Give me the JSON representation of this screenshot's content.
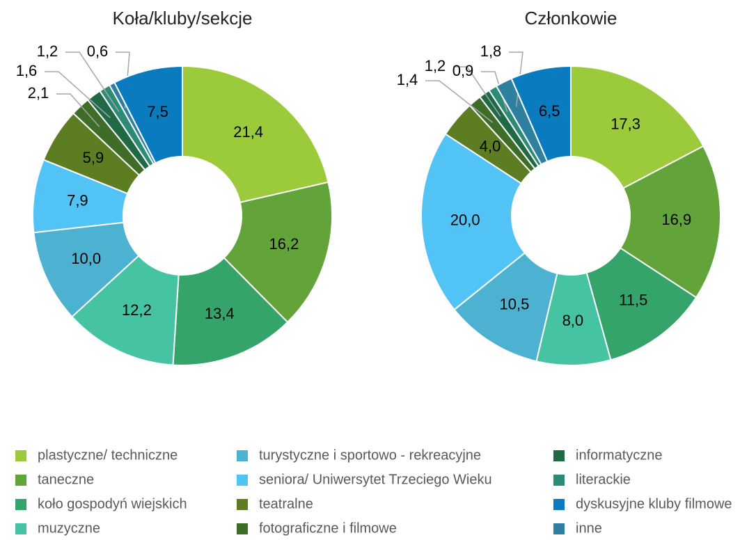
{
  "chart_data": [
    {
      "type": "donut",
      "title": "Koła/kluby/sekcje",
      "categories": [
        "plastyczne/ techniczne",
        "taneczne",
        "koło gospodyń wiejskich",
        "muzyczne",
        "turystyczne i sportowo - rekreacyjne",
        "seniora/ Uniwersytet Trzeciego Wieku",
        "teatralne",
        "fotograficzne i filmowe",
        "informatyczne",
        "literackie",
        "inne",
        "dyskusyjne kluby filmowe"
      ],
      "values": [
        21.4,
        16.2,
        13.4,
        12.2,
        10.0,
        7.9,
        5.9,
        2.1,
        1.6,
        1.2,
        0.6,
        7.5
      ],
      "value_labels": [
        "21,4",
        "16,2",
        "13,4",
        "12,2",
        "10,0",
        "7,9",
        "5,9",
        "2,1",
        "1,6",
        "1,2",
        "0,6",
        "7,5"
      ],
      "colors": [
        "#9bcb3b",
        "#63a43a",
        "#35a46b",
        "#45c3a3",
        "#4db2d2",
        "#52c3f5",
        "#5c7d22",
        "#3e6d27",
        "#1f6a45",
        "#2b8b75",
        "#2e80a0",
        "#0b7bc0"
      ]
    },
    {
      "type": "donut",
      "title": "Członkowie",
      "categories": [
        "plastyczne/ techniczne",
        "taneczne",
        "koło gospodyń wiejskich",
        "muzyczne",
        "turystyczne i sportowo - rekreacyjne",
        "seniora/ Uniwersytet Trzeciego Wieku",
        "teatralne",
        "fotograficzne i filmowe",
        "informatyczne",
        "literackie",
        "inne",
        "dyskusyjne kluby filmowe"
      ],
      "values": [
        17.3,
        16.9,
        11.5,
        8.0,
        10.5,
        20.0,
        4.0,
        1.4,
        1.2,
        0.9,
        1.8,
        6.5
      ],
      "value_labels": [
        "17,3",
        "16,9",
        "11,5",
        "8,0",
        "10,5",
        "20,0",
        "4,0",
        "1,4",
        "1,2",
        "0,9",
        "1,8",
        "6,5"
      ],
      "colors": [
        "#9bcb3b",
        "#63a43a",
        "#35a46b",
        "#45c3a3",
        "#4db2d2",
        "#52c3f5",
        "#5c7d22",
        "#3e6d27",
        "#1f6a45",
        "#2b8b75",
        "#2e80a0",
        "#0b7bc0"
      ]
    }
  ]
}
